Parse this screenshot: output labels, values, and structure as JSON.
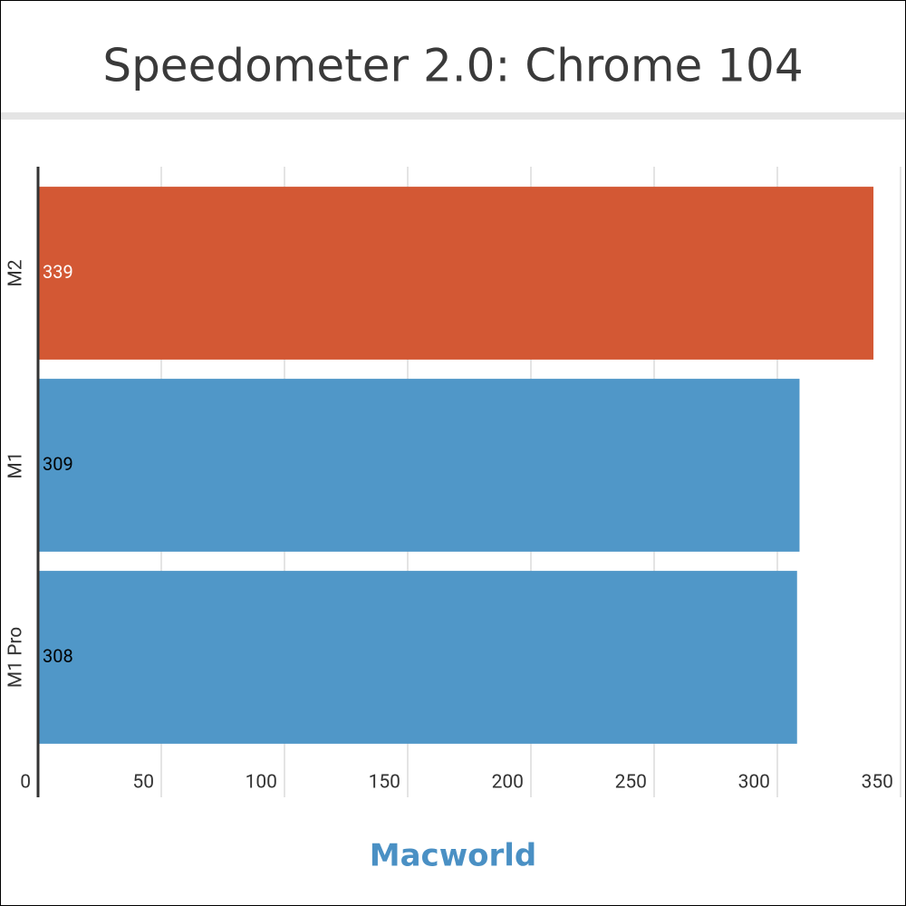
{
  "chart_data": {
    "type": "hbar",
    "title": "Speedometer 2.0: Chrome 104",
    "categories": [
      "M2",
      "M1",
      "M1 Pro"
    ],
    "values": [
      339,
      309,
      308
    ],
    "colors": [
      "#d35834",
      "#5097c8",
      "#5097c8"
    ],
    "value_label_colors": [
      "#ffffff",
      "#000000",
      "#000000"
    ],
    "xlim": [
      0,
      350
    ],
    "xticks": [
      0,
      50,
      100,
      150,
      200,
      250,
      300,
      350
    ],
    "grid": true,
    "source": "Macworld"
  }
}
